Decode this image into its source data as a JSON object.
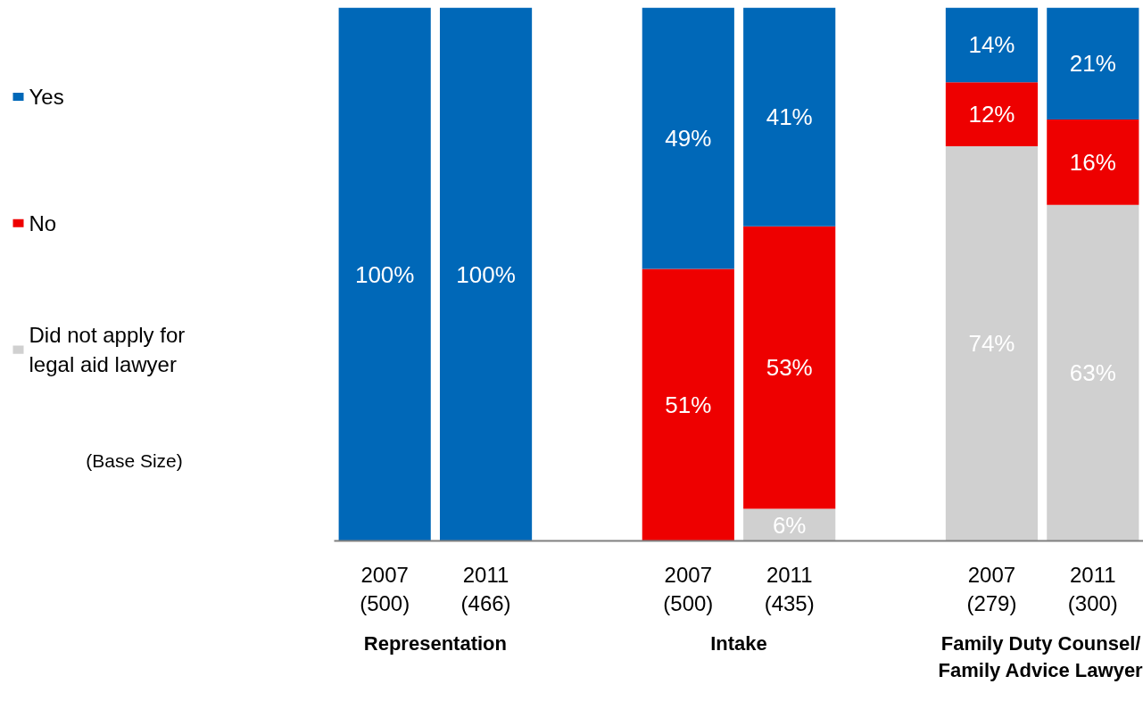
{
  "chart_data": {
    "type": "bar",
    "stacked": true,
    "categories": [
      "2007\n(500)",
      "2011\n(466)",
      null,
      "2007\n(500)",
      "2011\n(435)",
      null,
      "2007\n(279)",
      "2011\n(300)"
    ],
    "ylim": [
      0,
      100
    ],
    "tick_labels": "x",
    "grid": false,
    "legend": "left",
    "series": [
      {
        "name": "Did not apply for\nlegal aid lawyer",
        "color": "#d0d0d0",
        "values": [
          null,
          null,
          null,
          null,
          6,
          null,
          74,
          63
        ],
        "value_labels": [
          null,
          null,
          null,
          null,
          "6%",
          null,
          "74%",
          "63%"
        ]
      },
      {
        "name": "No",
        "color": "#ee0000",
        "values": [
          null,
          null,
          null,
          51,
          53,
          null,
          12,
          16
        ],
        "value_labels": [
          null,
          null,
          null,
          "51%",
          "53%",
          null,
          "12%",
          "16%"
        ]
      },
      {
        "name": "Yes",
        "color": "#0068b8",
        "values": [
          100,
          100,
          null,
          49,
          41,
          null,
          14,
          21
        ],
        "value_labels": [
          "100%",
          "100%",
          null,
          "49%",
          "41%",
          null,
          "14%",
          "21%"
        ]
      }
    ],
    "annotations": [
      "Representation",
      "Intake",
      "Family Duty Counsel/\nFamily Advice Lawyer",
      "(Base Size)"
    ]
  }
}
